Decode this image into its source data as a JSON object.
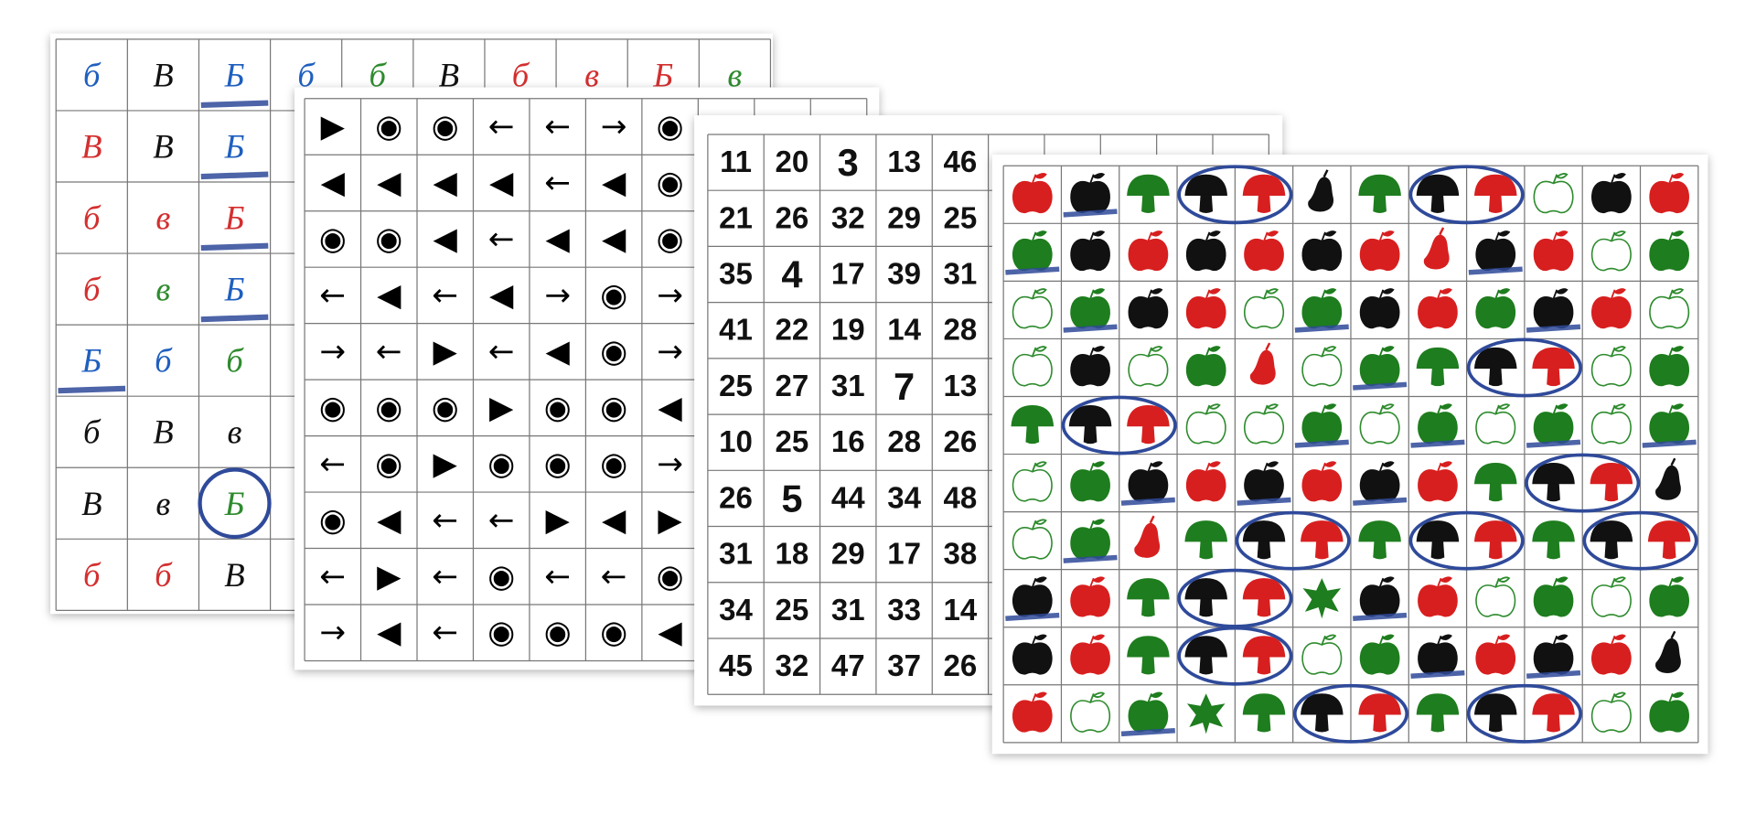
{
  "sheets": [
    {
      "rows": [
        [
          "б",
          "В",
          "Б",
          "б",
          "б",
          "В",
          "б",
          "в",
          "Б",
          "в"
        ],
        [
          "В",
          "В",
          "Б"
        ],
        [
          "б",
          "в",
          "Б"
        ],
        [
          "б",
          "в",
          "Б"
        ],
        [
          "Б",
          "б",
          "б"
        ],
        [
          "б",
          "В",
          "в"
        ],
        [
          "В",
          "в",
          "Б"
        ],
        [
          "б",
          "б",
          "В"
        ]
      ],
      "colors": [
        [
          "#1f5fbf",
          "#111111",
          "#1f5fbf",
          "#1f5fbf",
          "#2e8b2e",
          "#111111",
          "#d32f2f",
          "#d32f2f",
          "#d32f2f",
          "#2e8b2e"
        ],
        [
          "#d32f2f",
          "#111111",
          "#1f5fbf"
        ],
        [
          "#d32f2f",
          "#d32f2f",
          "#d32f2f"
        ],
        [
          "#d32f2f",
          "#2e8b2e",
          "#1f5fbf"
        ],
        [
          "#1f5fbf",
          "#1f5fbf",
          "#2e8b2e"
        ],
        [
          "#111111",
          "#111111",
          "#111111"
        ],
        [
          "#111111",
          "#111111",
          "#2e8b2e"
        ],
        [
          "#d32f2f",
          "#d32f2f",
          "#111111"
        ]
      ]
    },
    {
      "rows": [
        [
          "▶",
          "◉",
          "◉",
          "←",
          "←",
          "→",
          "◉"
        ],
        [
          "◀",
          "◀",
          "◀",
          "◀",
          "←",
          "◀",
          "◉"
        ],
        [
          "◉",
          "◉",
          "◀",
          "←",
          "◀",
          "◀",
          "◉"
        ],
        [
          "←",
          "◀",
          "←",
          "◀",
          "→",
          "◉",
          "→"
        ],
        [
          "→",
          "←",
          "▶",
          "←",
          "◀",
          "◉",
          "→"
        ],
        [
          "◉",
          "◉",
          "◉",
          "▶",
          "◉",
          "◉",
          "◀"
        ],
        [
          "←",
          "◉",
          "▶",
          "◉",
          "◉",
          "◉",
          "→"
        ],
        [
          "◉",
          "◀",
          "←",
          "←",
          "▶",
          "◀",
          "▶"
        ],
        [
          "←",
          "▶",
          "←",
          "◉",
          "←",
          "←",
          "◉"
        ],
        [
          "→",
          "◀",
          "←",
          "◉",
          "◉",
          "◉",
          "◀"
        ]
      ]
    },
    {
      "rows": [
        [
          11,
          20,
          3,
          13,
          46
        ],
        [
          21,
          26,
          32,
          29,
          25
        ],
        [
          35,
          4,
          17,
          39,
          31
        ],
        [
          41,
          22,
          19,
          14,
          28
        ],
        [
          25,
          27,
          31,
          7,
          13
        ],
        [
          10,
          25,
          16,
          28,
          26
        ],
        [
          26,
          5,
          44,
          34,
          48
        ],
        [
          31,
          18,
          29,
          17,
          38
        ],
        [
          34,
          25,
          31,
          33,
          14
        ],
        [
          45,
          32,
          47,
          37,
          26
        ]
      ]
    }
  ]
}
